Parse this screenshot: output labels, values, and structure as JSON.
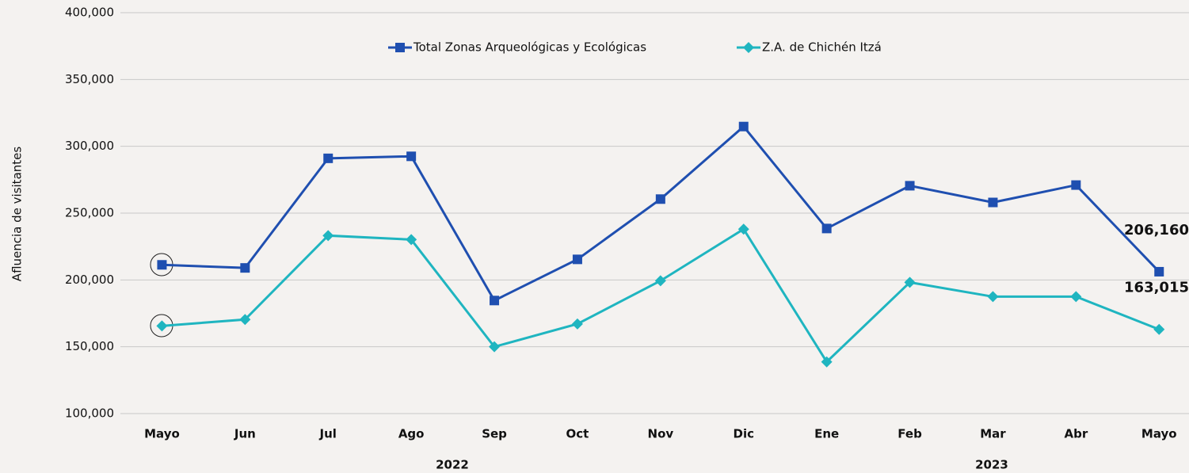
{
  "chart_data": {
    "type": "line",
    "y_label": "Afluencia de visitantes",
    "categories": [
      "Mayo",
      "Jun",
      "Jul",
      "Ago",
      "Sep",
      "Oct",
      "Nov",
      "Dic",
      "Ene",
      "Feb",
      "Mar",
      "Abr",
      "Mayo"
    ],
    "x_groups": [
      "2022",
      "2023"
    ],
    "series": [
      {
        "name": "Total Zonas Arqueológicas y Ecológicas",
        "color": "#1f4fb0",
        "marker": "square",
        "values": [
          211300,
          209000,
          291000,
          292500,
          184600,
          215400,
          260500,
          314800,
          238500,
          270500,
          258000,
          271000,
          206160
        ],
        "value_labels": [
          null,
          null,
          null,
          null,
          null,
          null,
          null,
          null,
          null,
          null,
          null,
          null,
          "206,160"
        ]
      },
      {
        "name": "Z.A. de Chichén Itzá",
        "color": "#1fb5c0",
        "marker": "diamond",
        "values": [
          165600,
          170400,
          233200,
          230200,
          150000,
          167100,
          199400,
          238000,
          138700,
          198200,
          187500,
          187500,
          163015
        ],
        "value_labels": [
          null,
          null,
          null,
          null,
          null,
          null,
          null,
          null,
          null,
          null,
          null,
          null,
          "163,015"
        ]
      }
    ],
    "ylim": [
      100000,
      400000
    ],
    "yticks": [
      {
        "value": 100000,
        "label": "100,000"
      },
      {
        "value": 150000,
        "label": "150,000"
      },
      {
        "value": 200000,
        "label": "200,000"
      },
      {
        "value": 250000,
        "label": "250,000"
      },
      {
        "value": 300000,
        "label": "300,000"
      },
      {
        "value": 350000,
        "label": "350,000"
      },
      {
        "value": 400000,
        "label": "400,000"
      }
    ],
    "grid": true
  }
}
